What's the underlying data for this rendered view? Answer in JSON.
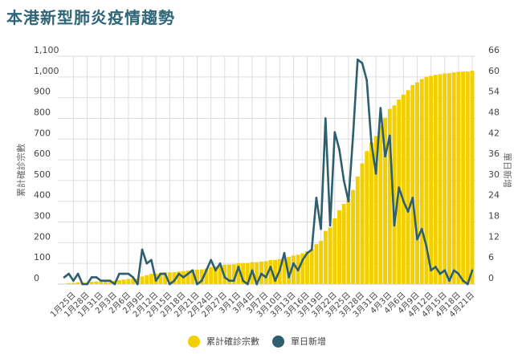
{
  "title": "本港新型肺炎疫情趨勢",
  "chart_data": {
    "type": "bar+line",
    "title": "本港新型肺炎疫情趨勢",
    "ylabel_left": "累計確診宗數",
    "ylabel_right": "單日新增",
    "ylim_left": [
      0,
      1100
    ],
    "ylim_right": [
      0,
      66
    ],
    "yticks_left": [
      "0",
      "100",
      "200",
      "300",
      "400",
      "500",
      "600",
      "700",
      "800",
      "900",
      "1,000",
      "1,100"
    ],
    "yticks_right": [
      "0",
      "6",
      "12",
      "18",
      "24",
      "30",
      "36",
      "42",
      "48",
      "54",
      "60",
      "66"
    ],
    "xtick_labels": [
      "1月25日",
      "1月28日",
      "1月31日",
      "2月3日",
      "2月6日",
      "2月9日",
      "2月12日",
      "2月15日",
      "2月18日",
      "2月21日",
      "2月24日",
      "2月27日",
      "3月1日",
      "3月4日",
      "3月7日",
      "3月10日",
      "3月13日",
      "3月16日",
      "3月19日",
      "3月22日",
      "3月25日",
      "3月28日",
      "3月31日",
      "4月3日",
      "4月6日",
      "4月9日",
      "4月12日",
      "4月15日",
      "4月18日",
      "4月21日"
    ],
    "x_start": "1月23日",
    "x_end": "4月21日",
    "grid": true,
    "legend_position": "bottom",
    "colors": {
      "cumulative": "#f2cf00",
      "daily": "#2d5f6f"
    },
    "series": [
      {
        "name": "累計確診宗數",
        "type": "bar",
        "axis": "left",
        "values": [
          2,
          5,
          6,
          9,
          9,
          9,
          11,
          13,
          14,
          15,
          16,
          16,
          19,
          22,
          25,
          27,
          27,
          37,
          43,
          50,
          51,
          54,
          57,
          57,
          58,
          61,
          63,
          66,
          70,
          70,
          71,
          75,
          82,
          86,
          92,
          94,
          95,
          96,
          101,
          102,
          102,
          106,
          106,
          109,
          111,
          116,
          117,
          121,
          130,
          132,
          138,
          142,
          149,
          158,
          168,
          193,
          209,
          257,
          274,
          318,
          357,
          387,
          411,
          454,
          519,
          583,
          642,
          683,
          715,
          766,
          803,
          846,
          863,
          891,
          915,
          936,
          961,
          974,
          990,
          1001,
          1005,
          1010,
          1013,
          1017,
          1018,
          1022,
          1025,
          1026,
          1026,
          1030
        ]
      },
      {
        "name": "單日新增",
        "type": "line",
        "axis": "right",
        "values": [
          2,
          3,
          1,
          3,
          0,
          0,
          2,
          2,
          1,
          1,
          1,
          0,
          3,
          3,
          3,
          2,
          0,
          10,
          6,
          7,
          1,
          3,
          3,
          0,
          1,
          3,
          2,
          3,
          4,
          0,
          1,
          4,
          7,
          4,
          6,
          2,
          1,
          1,
          5,
          1,
          0,
          4,
          0,
          3,
          2,
          5,
          1,
          4,
          9,
          2,
          6,
          4,
          7,
          9,
          10,
          25,
          16,
          48,
          17,
          44,
          39,
          30,
          24,
          43,
          65,
          64,
          59,
          41,
          32,
          51,
          37,
          43,
          17,
          28,
          24,
          21,
          25,
          13,
          16,
          11,
          4,
          5,
          3,
          4,
          1,
          4,
          3,
          1,
          0,
          4
        ]
      }
    ]
  }
}
